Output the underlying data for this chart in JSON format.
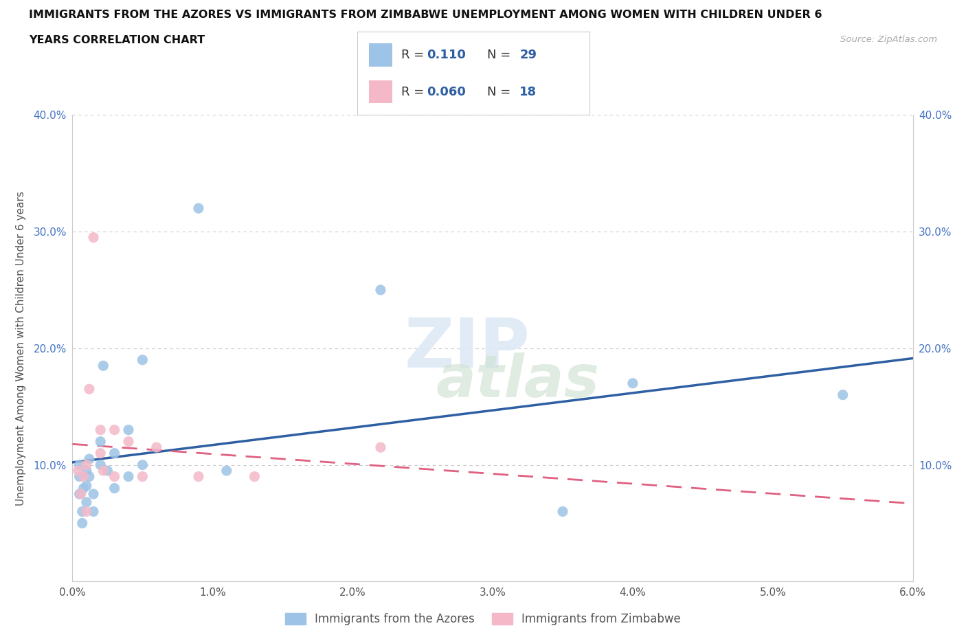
{
  "title_line1": "IMMIGRANTS FROM THE AZORES VS IMMIGRANTS FROM ZIMBABWE UNEMPLOYMENT AMONG WOMEN WITH CHILDREN UNDER 6",
  "title_line2": "YEARS CORRELATION CHART",
  "source": "Source: ZipAtlas.com",
  "ylabel": "Unemployment Among Women with Children Under 6 years",
  "xlim": [
    0.0,
    0.06
  ],
  "ylim": [
    0.0,
    0.4
  ],
  "xticks": [
    0.0,
    0.01,
    0.02,
    0.03,
    0.04,
    0.05,
    0.06
  ],
  "xtick_labels": [
    "0.0%",
    "1.0%",
    "2.0%",
    "3.0%",
    "4.0%",
    "5.0%",
    "6.0%"
  ],
  "yticks": [
    0.0,
    0.1,
    0.2,
    0.3,
    0.4
  ],
  "ytick_labels": [
    "",
    "10.0%",
    "20.0%",
    "30.0%",
    "40.0%"
  ],
  "azores_color": "#9dc3e6",
  "zimbabwe_color": "#f4b8c8",
  "azores_line_color": "#2e5fa3",
  "zimbabwe_line_color": "#e06080",
  "legend1_label": "Immigrants from the Azores",
  "legend2_label": "Immigrants from Zimbabwe",
  "watermark_top": "ZIP",
  "watermark_bottom": "atlas",
  "azores_x": [
    0.0005,
    0.0005,
    0.0005,
    0.0007,
    0.0007,
    0.0008,
    0.001,
    0.001,
    0.001,
    0.0012,
    0.0012,
    0.0015,
    0.0015,
    0.002,
    0.002,
    0.0022,
    0.0025,
    0.003,
    0.003,
    0.004,
    0.004,
    0.005,
    0.005,
    0.009,
    0.011,
    0.022,
    0.035,
    0.04,
    0.055
  ],
  "azores_y": [
    0.1,
    0.09,
    0.075,
    0.06,
    0.05,
    0.08,
    0.095,
    0.082,
    0.068,
    0.105,
    0.09,
    0.075,
    0.06,
    0.12,
    0.1,
    0.185,
    0.095,
    0.11,
    0.08,
    0.13,
    0.09,
    0.19,
    0.1,
    0.32,
    0.095,
    0.25,
    0.06,
    0.17,
    0.16
  ],
  "zimbabwe_x": [
    0.0004,
    0.0006,
    0.0008,
    0.001,
    0.001,
    0.0012,
    0.0015,
    0.002,
    0.002,
    0.0022,
    0.003,
    0.003,
    0.004,
    0.005,
    0.006,
    0.009,
    0.013,
    0.022
  ],
  "zimbabwe_y": [
    0.095,
    0.075,
    0.09,
    0.1,
    0.06,
    0.165,
    0.295,
    0.13,
    0.11,
    0.095,
    0.13,
    0.09,
    0.12,
    0.09,
    0.115,
    0.09,
    0.09,
    0.115
  ],
  "background_color": "#ffffff",
  "grid_color": "#cccccc",
  "tick_color": "#4472c4",
  "text_color": "#555555",
  "title_color": "#111111"
}
